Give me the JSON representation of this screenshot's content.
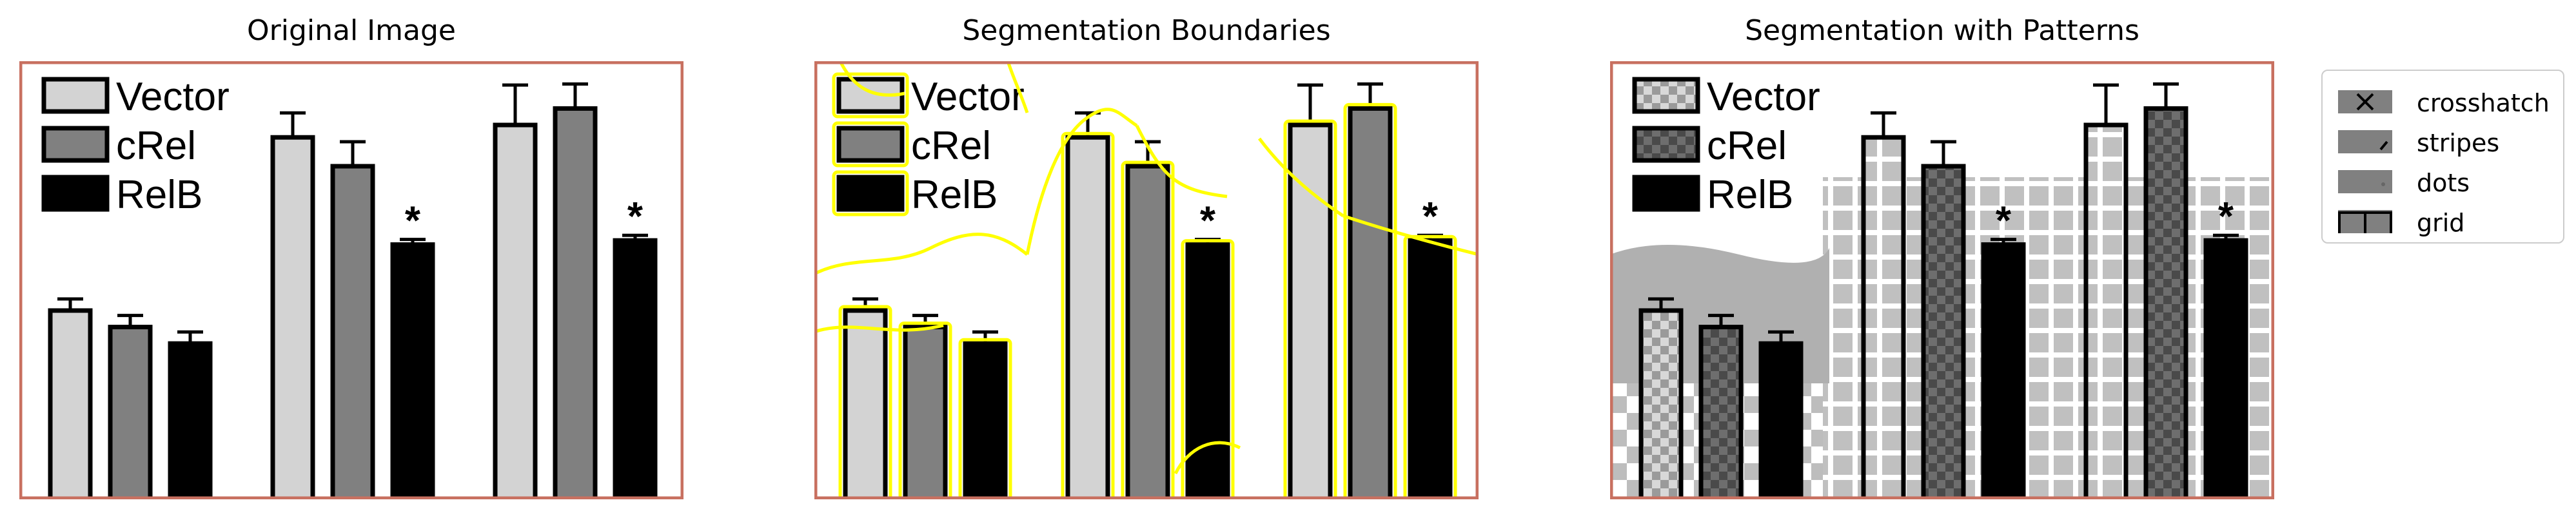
{
  "panels": [
    {
      "title": "Original Image"
    },
    {
      "title": "Segmentation Boundaries"
    },
    {
      "title": "Segmentation with Patterns"
    }
  ],
  "chart_data": {
    "type": "bar",
    "legend": [
      "Vector",
      "cRel",
      "RelB"
    ],
    "groups": [
      {
        "values": [
          0.45,
          0.41,
          0.37
        ],
        "annotations": [
          "",
          "",
          ""
        ]
      },
      {
        "values": [
          0.87,
          0.8,
          0.61
        ],
        "annotations": [
          "",
          "",
          "*"
        ]
      },
      {
        "values": [
          0.9,
          0.94,
          0.62
        ],
        "annotations": [
          "",
          "",
          "*"
        ]
      }
    ],
    "colors": {
      "Vector": "#d3d3d3",
      "cRel": "#808080",
      "RelB": "#000000"
    },
    "frame_color": "#c87060"
  },
  "legend": {
    "items": [
      {
        "label": "crosshatch",
        "glyph": "x-mark"
      },
      {
        "label": "stripes",
        "glyph": "slash-mark"
      },
      {
        "label": "dots",
        "glyph": "dots"
      },
      {
        "label": "grid",
        "glyph": "t-mark"
      }
    ],
    "swatch_color": "#808080"
  },
  "boundary_color": "#ffff00"
}
